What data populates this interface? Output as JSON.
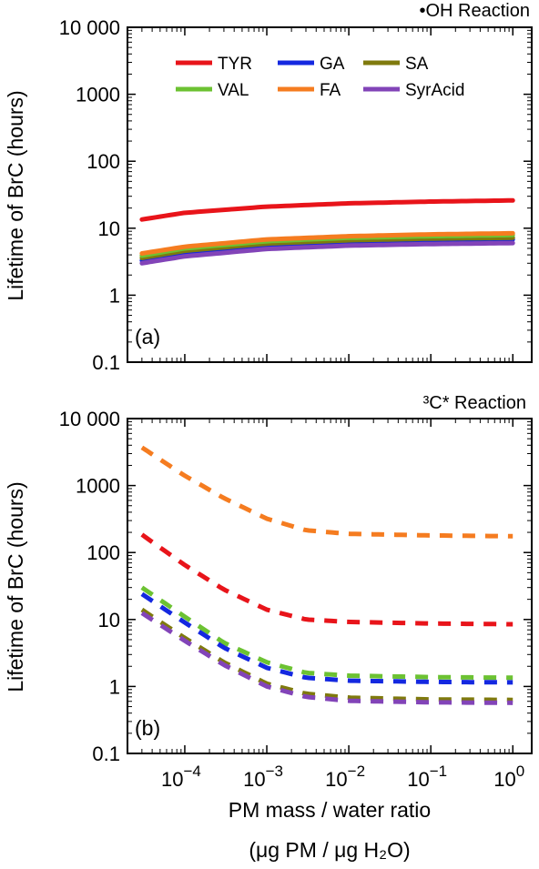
{
  "chart_data": [
    {
      "type": "line",
      "panel_label": "(a)",
      "title": "•OH Reaction",
      "ylabel": "Lifetime of BrC (hours)",
      "xlabel": "",
      "xscale": "log",
      "yscale": "log",
      "xlim": [
        2e-05,
        1.7
      ],
      "ylim": [
        0.1,
        10000
      ],
      "yticks": [
        "0.1",
        "1",
        "10",
        "100",
        "1000",
        "10 000"
      ],
      "line_style": "solid",
      "legend": {
        "placement": "top-center",
        "columns": 3
      },
      "series": [
        {
          "name": "TYR",
          "color": "#e8141a",
          "x": [
            3e-05,
            0.0001,
            0.001,
            0.01,
            0.1,
            1
          ],
          "values": [
            13.5,
            17,
            21,
            23.5,
            25,
            26
          ]
        },
        {
          "name": "GA",
          "color": "#1428e0",
          "x": [
            3e-05,
            0.0001,
            0.001,
            0.01,
            0.1,
            1
          ],
          "values": [
            3.3,
            4.2,
            5.4,
            6.1,
            6.5,
            6.8
          ]
        },
        {
          "name": "SA",
          "color": "#7f7a0d",
          "x": [
            3e-05,
            0.0001,
            0.001,
            0.01,
            0.1,
            1
          ],
          "values": [
            3.6,
            4.6,
            5.9,
            6.6,
            7.0,
            7.2
          ]
        },
        {
          "name": "VAL",
          "color": "#6cc232",
          "x": [
            3e-05,
            0.0001,
            0.001,
            0.01,
            0.1,
            1
          ],
          "values": [
            3.9,
            5.0,
            6.4,
            7.2,
            7.6,
            7.9
          ]
        },
        {
          "name": "FA",
          "color": "#f57c20",
          "x": [
            3e-05,
            0.0001,
            0.001,
            0.01,
            0.1,
            1
          ],
          "values": [
            4.2,
            5.3,
            6.8,
            7.6,
            8.1,
            8.4
          ]
        },
        {
          "name": "SyrAcid",
          "color": "#8244b8",
          "x": [
            3e-05,
            0.0001,
            0.001,
            0.01,
            0.1,
            1
          ],
          "values": [
            3.0,
            3.8,
            4.9,
            5.5,
            5.8,
            6.0
          ]
        }
      ]
    },
    {
      "type": "line",
      "panel_label": "(b)",
      "title": "³C* Reaction",
      "ylabel": "Lifetime of BrC (hours)",
      "xlabel": "PM mass / water ratio",
      "xlabel2": "(μg PM / μg H₂O)",
      "xscale": "log",
      "yscale": "log",
      "xlim": [
        2e-05,
        1.7
      ],
      "ylim": [
        0.1,
        10000
      ],
      "yticks": [
        "0.1",
        "1",
        "10",
        "100",
        "1000",
        "10 000"
      ],
      "xticks": [
        {
          "base": "10",
          "exp": "−4"
        },
        {
          "base": "10",
          "exp": "−3"
        },
        {
          "base": "10",
          "exp": "−2"
        },
        {
          "base": "10",
          "exp": "−1"
        },
        {
          "base": "10",
          "exp": "0"
        }
      ],
      "line_style": "dashed",
      "series": [
        {
          "name": "FA",
          "color": "#f57c20",
          "x": [
            3e-05,
            0.0001,
            0.0003,
            0.001,
            0.003,
            0.01,
            0.1,
            1
          ],
          "values": [
            3700,
            1400,
            650,
            320,
            215,
            190,
            180,
            175
          ]
        },
        {
          "name": "TYR",
          "color": "#e8141a",
          "x": [
            3e-05,
            0.0001,
            0.0003,
            0.001,
            0.003,
            0.01,
            0.1,
            1
          ],
          "values": [
            185,
            65,
            28,
            14,
            10,
            9.2,
            8.7,
            8.5
          ]
        },
        {
          "name": "VAL",
          "color": "#6cc232",
          "x": [
            3e-05,
            0.0001,
            0.0003,
            0.001,
            0.003,
            0.01,
            0.1,
            1
          ],
          "values": [
            30,
            11,
            4.5,
            2.3,
            1.6,
            1.45,
            1.38,
            1.35
          ]
        },
        {
          "name": "GA",
          "color": "#1428e0",
          "x": [
            3e-05,
            0.0001,
            0.0003,
            0.001,
            0.003,
            0.01,
            0.1,
            1
          ],
          "values": [
            24,
            9,
            3.8,
            1.9,
            1.35,
            1.22,
            1.17,
            1.15
          ]
        },
        {
          "name": "SA",
          "color": "#7f7a0d",
          "x": [
            3e-05,
            0.0001,
            0.0003,
            0.001,
            0.003,
            0.01,
            0.1,
            1
          ],
          "values": [
            14,
            5.3,
            2.3,
            1.1,
            0.78,
            0.68,
            0.64,
            0.63
          ]
        },
        {
          "name": "SyrAcid",
          "color": "#8244b8",
          "x": [
            3e-05,
            0.0001,
            0.0003,
            0.001,
            0.003,
            0.01,
            0.1,
            1
          ],
          "values": [
            12.5,
            4.8,
            2.1,
            1.0,
            0.7,
            0.61,
            0.58,
            0.57
          ]
        }
      ]
    }
  ]
}
